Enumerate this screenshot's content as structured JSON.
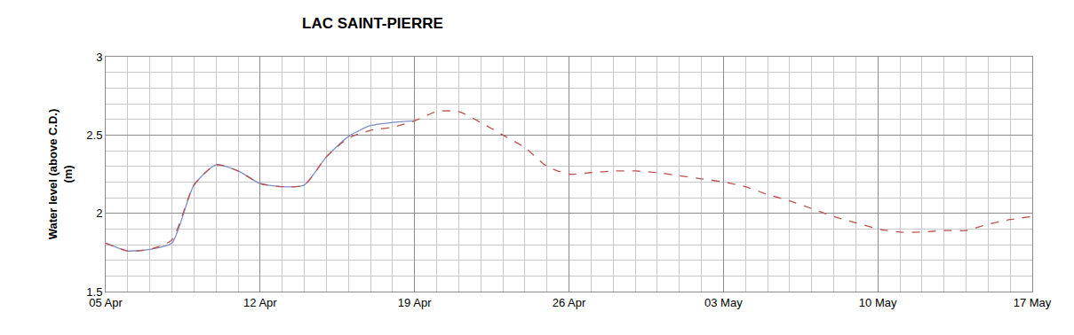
{
  "chart_data": {
    "type": "line",
    "title": "LAC SAINT-PIERRE",
    "y_label": "Water level (above C.D.)\n(m)",
    "categories": [
      "05 Apr",
      null,
      null,
      null,
      null,
      null,
      null,
      "12 Apr",
      null,
      null,
      null,
      null,
      null,
      null,
      "19 Apr",
      null,
      null,
      null,
      null,
      null,
      null,
      "26 Apr",
      null,
      null,
      null,
      null,
      null,
      null,
      "03 May",
      null,
      null,
      null,
      null,
      null,
      null,
      "10 May",
      null,
      null,
      null,
      null,
      null,
      null,
      "17 May"
    ],
    "series": [
      {
        "color": "#7b8fc9",
        "line_style": "solid",
        "values": [
          1.81,
          1.76,
          1.77,
          1.81,
          2.18,
          2.31,
          2.27,
          2.19,
          2.17,
          2.18,
          2.36,
          2.49,
          2.56,
          2.58,
          2.59,
          null,
          null,
          null,
          null,
          null,
          null,
          null,
          null,
          null,
          null,
          null,
          null,
          null,
          null,
          null,
          null,
          null,
          null,
          null,
          null,
          null,
          null,
          null,
          null,
          null,
          null,
          null,
          null
        ]
      },
      {
        "color": "#c0504d",
        "line_style": "dash",
        "values": [
          1.81,
          1.76,
          1.77,
          1.83,
          2.18,
          2.31,
          2.27,
          2.19,
          2.17,
          2.18,
          2.36,
          2.48,
          2.53,
          2.55,
          2.59,
          2.65,
          2.65,
          2.58,
          2.5,
          2.42,
          2.3,
          2.25,
          2.26,
          2.27,
          2.27,
          2.26,
          2.24,
          2.22,
          2.2,
          2.17,
          2.12,
          2.08,
          2.03,
          1.98,
          1.94,
          1.9,
          1.88,
          1.88,
          1.89,
          1.89,
          1.93,
          1.96,
          1.98
        ]
      }
    ],
    "ylim": [
      1.5,
      3
    ],
    "yticks": [
      1.5,
      2,
      2.5,
      3
    ],
    "grid": true
  }
}
